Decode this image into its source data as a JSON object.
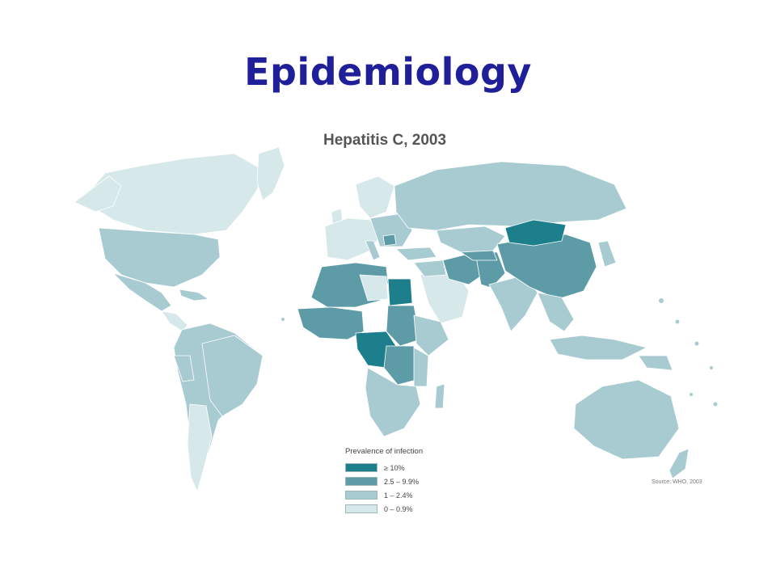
{
  "slide": {
    "title": "Epidemiology"
  },
  "map": {
    "title": "Hepatitis C, 2003",
    "source": "Source: WHO, 2003",
    "legend": {
      "title": "Prevalence of infection",
      "items": [
        {
          "label": "≥ 10%",
          "color": "#1d7f8c"
        },
        {
          "label": "2.5 – 9.9%",
          "color": "#5d9ba6"
        },
        {
          "label": "1 – 2.4%",
          "color": "#a8cbd1"
        },
        {
          "label": "0 – 0.9%",
          "color": "#d7e8ea"
        }
      ]
    }
  }
}
